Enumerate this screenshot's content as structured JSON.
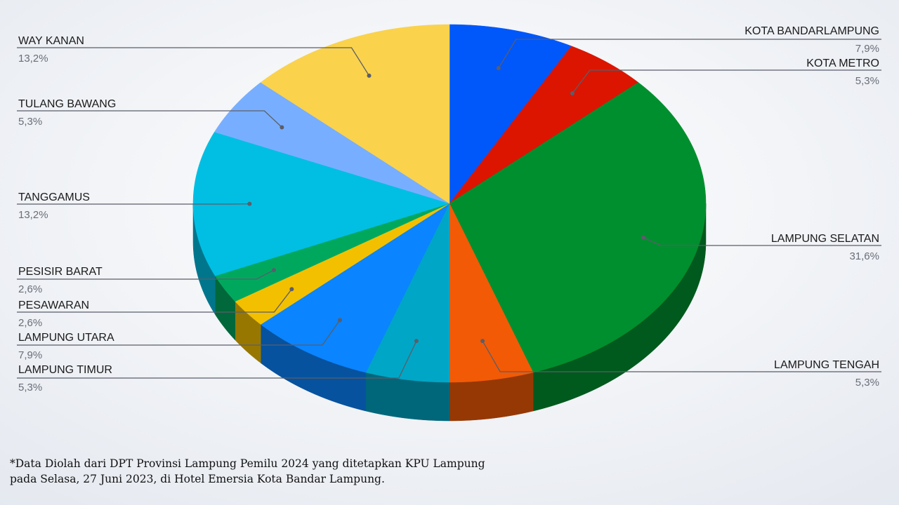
{
  "chart_data": {
    "type": "pie",
    "categories": [
      "KOTA BANDARLAMPUNG",
      "KOTA METRO",
      "LAMPUNG SELATAN",
      "LAMPUNG TENGAH",
      "LAMPUNG TIMUR",
      "LAMPUNG UTARA",
      "PESAWARAN",
      "PESISIR BARAT",
      "TANGGAMUS",
      "TULANG BAWANG",
      "WAY KANAN"
    ],
    "values": [
      7.9,
      5.3,
      31.6,
      5.3,
      5.3,
      7.9,
      2.6,
      2.6,
      13.2,
      5.3,
      13.2
    ],
    "value_labels": [
      "7,9%",
      "5,3%",
      "31,6%",
      "5,3%",
      "5,3%",
      "7,9%",
      "2,6%",
      "2,6%",
      "13,2%",
      "5,3%",
      "13,2%"
    ],
    "colors": [
      "#0057fa",
      "#db1500",
      "#008f2e",
      "#f25a05",
      "#00a6c6",
      "#0a84ff",
      "#f3c000",
      "#00a85e",
      "#00bfe3",
      "#78aeff",
      "#fad24c"
    ]
  },
  "footnote": [
    "*Data Diolah dari DPT Provinsi Lampung Pemilu 2024 yang ditetapkan KPU Lampung",
    "pada Selasa, 27 Juni 2023, di Hotel Emersia Kota Bandar Lampung."
  ]
}
